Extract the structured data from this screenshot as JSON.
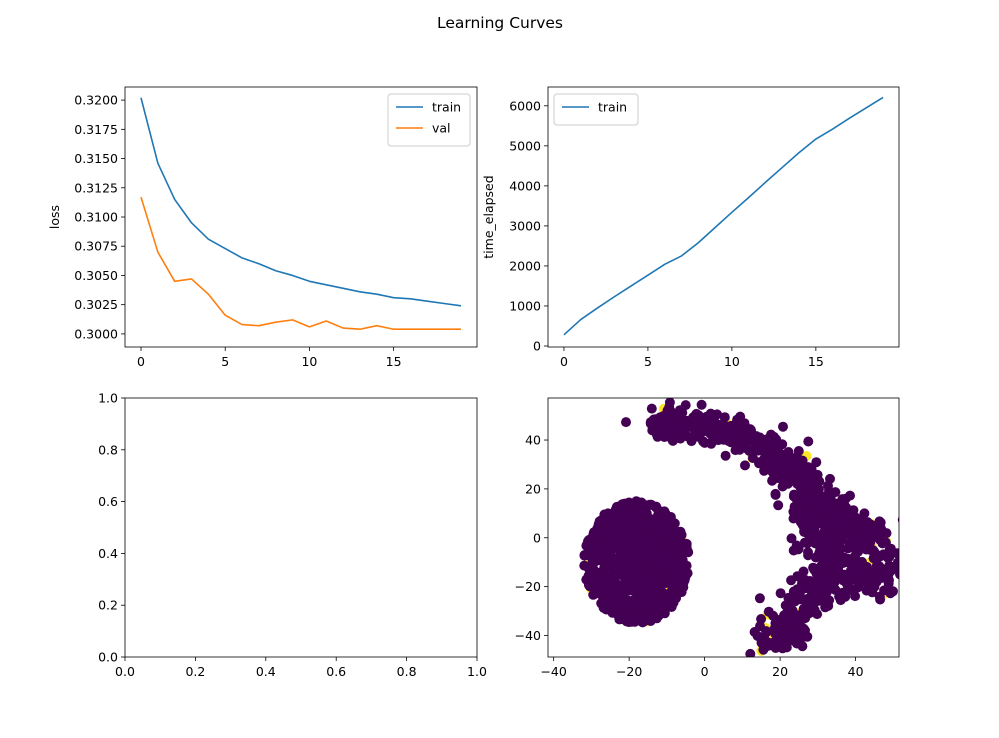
{
  "title": "Learning Curves",
  "chart_data": [
    {
      "type": "line",
      "ylabel": "loss",
      "xlabel": "",
      "xlim": [
        -0.95,
        19.95
      ],
      "ylim": [
        0.29888,
        0.32112
      ],
      "xticks": [
        "0",
        "5",
        "10",
        "15"
      ],
      "yticks": [
        "0.3000",
        "0.3025",
        "0.3050",
        "0.3075",
        "0.3100",
        "0.3125",
        "0.3150",
        "0.3175",
        "0.3200"
      ],
      "legend": "top-right",
      "series": [
        {
          "name": "train",
          "color": "#1f77b4",
          "x": [
            0,
            1,
            2,
            3,
            4,
            5,
            6,
            7,
            8,
            9,
            10,
            11,
            12,
            13,
            14,
            15,
            16,
            17,
            18,
            19
          ],
          "y": [
            0.3202,
            0.3146,
            0.3115,
            0.3095,
            0.3081,
            0.3073,
            0.3065,
            0.306,
            0.3054,
            0.305,
            0.3045,
            0.3042,
            0.3039,
            0.3036,
            0.3034,
            0.3031,
            0.303,
            0.3028,
            0.3026,
            0.3024
          ]
        },
        {
          "name": "val",
          "color": "#ff7f0e",
          "x": [
            0,
            1,
            2,
            3,
            4,
            5,
            6,
            7,
            8,
            9,
            10,
            11,
            12,
            13,
            14,
            15,
            16,
            17,
            18,
            19
          ],
          "y": [
            0.3117,
            0.307,
            0.3045,
            0.3047,
            0.3034,
            0.3016,
            0.3008,
            0.3007,
            0.301,
            0.3012,
            0.3006,
            0.3011,
            0.3005,
            0.3004,
            0.3007,
            0.3004,
            0.3004,
            0.3004,
            0.3004,
            0.3004
          ]
        }
      ]
    },
    {
      "type": "line",
      "ylabel": "time_elapsed",
      "xlabel": "",
      "xlim": [
        -0.95,
        19.95
      ],
      "ylim": [
        -25,
        6470
      ],
      "xticks": [
        "0",
        "5",
        "10",
        "15"
      ],
      "yticks": [
        "0",
        "1000",
        "2000",
        "3000",
        "4000",
        "5000",
        "6000"
      ],
      "legend": "top-left",
      "series": [
        {
          "name": "train",
          "color": "#1f77b4",
          "x": [
            0,
            1,
            2,
            3,
            4,
            5,
            6,
            7,
            8,
            9,
            10,
            11,
            12,
            13,
            14,
            15,
            16,
            17,
            18,
            19
          ],
          "y": [
            280,
            660,
            950,
            1230,
            1500,
            1770,
            2040,
            2250,
            2580,
            2960,
            3340,
            3710,
            4090,
            4460,
            4830,
            5170,
            5420,
            5690,
            5950,
            6210
          ]
        }
      ]
    },
    {
      "type": "empty",
      "xlim": [
        0,
        1
      ],
      "ylim": [
        0,
        1
      ],
      "xticks": [
        "0.0",
        "0.2",
        "0.4",
        "0.6",
        "0.8",
        "1.0"
      ],
      "yticks": [
        "0.0",
        "0.2",
        "0.4",
        "0.6",
        "0.8",
        "1.0"
      ]
    },
    {
      "type": "scatter",
      "xlim": [
        -41.5,
        51.5
      ],
      "ylim": [
        -48.8,
        57.2
      ],
      "xticks": [
        "−40",
        "−20",
        "0",
        "20",
        "40"
      ],
      "yticks": [
        "−40",
        "−20",
        "0",
        "20",
        "40"
      ],
      "colors": {
        "class0": "#440154",
        "class1": "#fde725"
      },
      "clusters": [
        {
          "shape": "blob",
          "cx": -18,
          "cy": -10,
          "rx": 14,
          "ry": 25,
          "n": 900,
          "yellow_ratio": 0.06
        },
        {
          "shape": "arc",
          "path": [
            [
              -13,
              46
            ],
            [
              -5,
              47
            ],
            [
              5,
              43
            ],
            [
              15,
              38
            ],
            [
              22,
              30
            ],
            [
              28,
              18
            ],
            [
              30,
              10
            ],
            [
              32,
              0
            ],
            [
              33,
              -12
            ],
            [
              28,
              -25
            ],
            [
              22,
              -35
            ],
            [
              18,
              -44
            ]
          ],
          "spread": 3.5,
          "n": 700,
          "yellow_ratio": 0.06
        },
        {
          "shape": "arc",
          "path": [
            [
              28,
              16
            ],
            [
              36,
              10
            ],
            [
              42,
              4
            ],
            [
              45,
              -4
            ],
            [
              46,
              -12
            ],
            [
              44,
              -20
            ],
            [
              38,
              -18
            ],
            [
              34,
              -14
            ]
          ],
          "spread": 3,
          "n": 260,
          "yellow_ratio": 0.06
        }
      ]
    }
  ]
}
